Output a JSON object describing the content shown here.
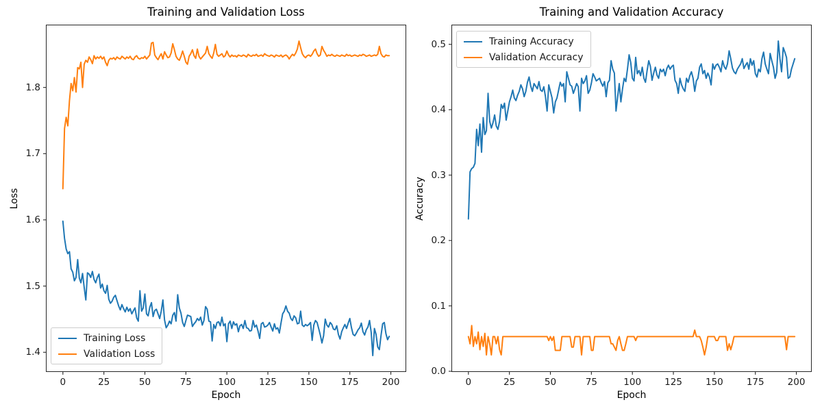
{
  "figure": {
    "background_color": "#ffffff",
    "spine_color": "#262626",
    "text_color": "#000000"
  },
  "chart_data": [
    {
      "type": "line",
      "title": "Training and Validation Loss",
      "xlabel": "Epoch",
      "ylabel": "Loss",
      "grid": false,
      "xlim": [
        -9.95,
        208.95
      ],
      "ylim": [
        1.3713,
        1.8938
      ],
      "xticks": [
        0,
        25,
        50,
        75,
        100,
        125,
        150,
        175,
        200
      ],
      "xtick_labels": [
        "0",
        "25",
        "50",
        "75",
        "100",
        "125",
        "150",
        "175",
        "200"
      ],
      "yticks": [
        1.4,
        1.5,
        1.6,
        1.7,
        1.8
      ],
      "ytick_labels": [
        "1.4",
        "1.5",
        "1.6",
        "1.7",
        "1.8"
      ],
      "legend_position": "lower-left",
      "x_start": 0,
      "x_step": 1,
      "series": [
        {
          "name": "Training Loss",
          "color": "#1f77b4",
          "values": [
            1.598,
            1.572,
            1.556,
            1.549,
            1.552,
            1.526,
            1.521,
            1.508,
            1.513,
            1.54,
            1.512,
            1.505,
            1.519,
            1.498,
            1.479,
            1.52,
            1.518,
            1.513,
            1.522,
            1.51,
            1.505,
            1.513,
            1.518,
            1.497,
            1.503,
            1.493,
            1.489,
            1.501,
            1.48,
            1.474,
            1.477,
            1.483,
            1.486,
            1.478,
            1.47,
            1.464,
            1.472,
            1.466,
            1.461,
            1.468,
            1.462,
            1.466,
            1.458,
            1.463,
            1.467,
            1.452,
            1.447,
            1.493,
            1.462,
            1.467,
            1.488,
            1.458,
            1.455,
            1.468,
            1.475,
            1.454,
            1.463,
            1.465,
            1.458,
            1.451,
            1.462,
            1.479,
            1.449,
            1.437,
            1.441,
            1.447,
            1.443,
            1.456,
            1.46,
            1.447,
            1.487,
            1.467,
            1.459,
            1.445,
            1.439,
            1.448,
            1.456,
            1.455,
            1.454,
            1.439,
            1.443,
            1.446,
            1.451,
            1.448,
            1.453,
            1.441,
            1.448,
            1.469,
            1.465,
            1.447,
            1.446,
            1.417,
            1.442,
            1.436,
            1.445,
            1.446,
            1.44,
            1.453,
            1.44,
            1.443,
            1.416,
            1.443,
            1.447,
            1.436,
            1.446,
            1.441,
            1.443,
            1.431,
            1.44,
            1.442,
            1.436,
            1.448,
            1.437,
            1.436,
            1.432,
            1.433,
            1.448,
            1.438,
            1.441,
            1.432,
            1.421,
            1.443,
            1.445,
            1.438,
            1.439,
            1.441,
            1.445,
            1.438,
            1.432,
            1.443,
            1.435,
            1.437,
            1.429,
            1.444,
            1.458,
            1.462,
            1.47,
            1.462,
            1.459,
            1.451,
            1.448,
            1.455,
            1.452,
            1.443,
            1.444,
            1.462,
            1.441,
            1.439,
            1.442,
            1.44,
            1.442,
            1.445,
            1.418,
            1.441,
            1.448,
            1.445,
            1.436,
            1.426,
            1.414,
            1.425,
            1.45,
            1.441,
            1.438,
            1.445,
            1.442,
            1.435,
            1.434,
            1.44,
            1.427,
            1.42,
            1.431,
            1.437,
            1.442,
            1.436,
            1.444,
            1.451,
            1.437,
            1.427,
            1.425,
            1.429,
            1.434,
            1.437,
            1.444,
            1.431,
            1.426,
            1.434,
            1.438,
            1.448,
            1.43,
            1.395,
            1.436,
            1.427,
            1.408,
            1.404,
            1.425,
            1.443,
            1.445,
            1.428,
            1.419,
            1.424
          ]
        },
        {
          "name": "Validation Loss",
          "color": "#ff7f0e",
          "values": [
            1.647,
            1.738,
            1.755,
            1.742,
            1.78,
            1.806,
            1.795,
            1.815,
            1.793,
            1.83,
            1.828,
            1.838,
            1.8,
            1.835,
            1.841,
            1.838,
            1.846,
            1.842,
            1.836,
            1.848,
            1.843,
            1.846,
            1.844,
            1.847,
            1.843,
            1.846,
            1.838,
            1.833,
            1.841,
            1.844,
            1.843,
            1.845,
            1.842,
            1.846,
            1.844,
            1.843,
            1.847,
            1.845,
            1.843,
            1.846,
            1.844,
            1.847,
            1.843,
            1.842,
            1.846,
            1.848,
            1.844,
            1.843,
            1.845,
            1.844,
            1.847,
            1.843,
            1.846,
            1.849,
            1.867,
            1.868,
            1.849,
            1.845,
            1.842,
            1.847,
            1.851,
            1.843,
            1.854,
            1.849,
            1.845,
            1.846,
            1.852,
            1.866,
            1.857,
            1.847,
            1.843,
            1.841,
            1.847,
            1.855,
            1.847,
            1.838,
            1.835,
            1.847,
            1.851,
            1.857,
            1.848,
            1.844,
            1.858,
            1.847,
            1.843,
            1.846,
            1.849,
            1.852,
            1.862,
            1.851,
            1.847,
            1.844,
            1.852,
            1.865,
            1.85,
            1.847,
            1.849,
            1.851,
            1.846,
            1.848,
            1.855,
            1.849,
            1.846,
            1.849,
            1.847,
            1.848,
            1.846,
            1.849,
            1.848,
            1.847,
            1.849,
            1.848,
            1.846,
            1.85,
            1.848,
            1.847,
            1.849,
            1.848,
            1.85,
            1.847,
            1.848,
            1.849,
            1.847,
            1.851,
            1.849,
            1.848,
            1.847,
            1.849,
            1.848,
            1.846,
            1.849,
            1.848,
            1.847,
            1.849,
            1.846,
            1.848,
            1.849,
            1.847,
            1.843,
            1.847,
            1.85,
            1.848,
            1.852,
            1.858,
            1.87,
            1.86,
            1.851,
            1.847,
            1.845,
            1.848,
            1.849,
            1.847,
            1.85,
            1.855,
            1.858,
            1.851,
            1.847,
            1.849,
            1.862,
            1.856,
            1.852,
            1.847,
            1.849,
            1.848,
            1.85,
            1.848,
            1.847,
            1.849,
            1.848,
            1.847,
            1.849,
            1.848,
            1.847,
            1.85,
            1.848,
            1.849,
            1.847,
            1.848,
            1.849,
            1.848,
            1.847,
            1.849,
            1.848,
            1.85,
            1.849,
            1.847,
            1.848,
            1.849,
            1.847,
            1.848,
            1.849,
            1.848,
            1.85,
            1.862,
            1.851,
            1.847,
            1.846,
            1.849,
            1.848,
            1.848
          ]
        }
      ]
    },
    {
      "type": "line",
      "title": "Training and Validation Accuracy",
      "xlabel": "Epoch",
      "ylabel": "Accuracy",
      "grid": false,
      "xlim": [
        -9.95,
        208.95
      ],
      "ylim": [
        0.0,
        0.529
      ],
      "xticks": [
        0,
        25,
        50,
        75,
        100,
        125,
        150,
        175,
        200
      ],
      "xtick_labels": [
        "0",
        "25",
        "50",
        "75",
        "100",
        "125",
        "150",
        "175",
        "200"
      ],
      "yticks": [
        0.0,
        0.1,
        0.2,
        0.3,
        0.4,
        0.5
      ],
      "ytick_labels": [
        "0.0",
        "0.1",
        "0.2",
        "0.3",
        "0.4",
        "0.5"
      ],
      "legend_position": "upper-left",
      "x_start": 0,
      "x_step": 1,
      "series": [
        {
          "name": "Training Accuracy",
          "color": "#1f77b4",
          "values": [
            0.233,
            0.305,
            0.31,
            0.312,
            0.318,
            0.37,
            0.345,
            0.378,
            0.335,
            0.388,
            0.362,
            0.368,
            0.425,
            0.382,
            0.372,
            0.38,
            0.392,
            0.375,
            0.37,
            0.382,
            0.408,
            0.402,
            0.41,
            0.384,
            0.398,
            0.412,
            0.42,
            0.43,
            0.418,
            0.414,
            0.422,
            0.428,
            0.438,
            0.432,
            0.42,
            0.428,
            0.442,
            0.45,
            0.436,
            0.428,
            0.44,
            0.436,
            0.432,
            0.443,
            0.43,
            0.428,
            0.435,
            0.42,
            0.398,
            0.438,
            0.428,
            0.418,
            0.395,
            0.412,
            0.418,
            0.43,
            0.442,
            0.436,
            0.44,
            0.412,
            0.458,
            0.448,
            0.438,
            0.436,
            0.425,
            0.432,
            0.44,
            0.435,
            0.398,
            0.448,
            0.44,
            0.444,
            0.452,
            0.425,
            0.43,
            0.441,
            0.455,
            0.45,
            0.444,
            0.446,
            0.448,
            0.441,
            0.436,
            0.443,
            0.42,
            0.441,
            0.445,
            0.475,
            0.462,
            0.456,
            0.398,
            0.42,
            0.44,
            0.412,
            0.432,
            0.448,
            0.443,
            0.462,
            0.484,
            0.472,
            0.448,
            0.444,
            0.48,
            0.455,
            0.46,
            0.452,
            0.465,
            0.448,
            0.442,
            0.46,
            0.475,
            0.466,
            0.445,
            0.456,
            0.465,
            0.453,
            0.448,
            0.462,
            0.458,
            0.462,
            0.452,
            0.463,
            0.468,
            0.462,
            0.466,
            0.468,
            0.445,
            0.44,
            0.425,
            0.448,
            0.438,
            0.432,
            0.428,
            0.448,
            0.442,
            0.452,
            0.458,
            0.448,
            0.428,
            0.444,
            0.448,
            0.465,
            0.47,
            0.455,
            0.46,
            0.448,
            0.456,
            0.45,
            0.438,
            0.47,
            0.462,
            0.468,
            0.47,
            0.465,
            0.458,
            0.475,
            0.466,
            0.462,
            0.47,
            0.49,
            0.478,
            0.464,
            0.458,
            0.455,
            0.462,
            0.466,
            0.47,
            0.478,
            0.463,
            0.468,
            0.472,
            0.462,
            0.478,
            0.468,
            0.475,
            0.455,
            0.45,
            0.462,
            0.458,
            0.478,
            0.488,
            0.47,
            0.462,
            0.455,
            0.486,
            0.475,
            0.465,
            0.448,
            0.457,
            0.505,
            0.478,
            0.458,
            0.495,
            0.488,
            0.48,
            0.448,
            0.45,
            0.462,
            0.47,
            0.478
          ]
        },
        {
          "name": "Validation Accuracy",
          "color": "#ff7f0e",
          "values": [
            0.053,
            0.042,
            0.07,
            0.038,
            0.053,
            0.042,
            0.06,
            0.033,
            0.053,
            0.038,
            0.058,
            0.025,
            0.053,
            0.042,
            0.025,
            0.053,
            0.053,
            0.042,
            0.053,
            0.033,
            0.025,
            0.053,
            0.053,
            0.053,
            0.053,
            0.053,
            0.053,
            0.053,
            0.053,
            0.053,
            0.053,
            0.053,
            0.053,
            0.053,
            0.053,
            0.053,
            0.053,
            0.053,
            0.053,
            0.053,
            0.053,
            0.053,
            0.053,
            0.053,
            0.053,
            0.053,
            0.053,
            0.053,
            0.053,
            0.047,
            0.053,
            0.047,
            0.053,
            0.032,
            0.032,
            0.032,
            0.032,
            0.053,
            0.053,
            0.053,
            0.053,
            0.053,
            0.053,
            0.037,
            0.037,
            0.053,
            0.053,
            0.053,
            0.053,
            0.025,
            0.053,
            0.053,
            0.053,
            0.053,
            0.053,
            0.032,
            0.032,
            0.053,
            0.053,
            0.053,
            0.053,
            0.053,
            0.053,
            0.053,
            0.053,
            0.053,
            0.053,
            0.042,
            0.042,
            0.037,
            0.032,
            0.047,
            0.053,
            0.042,
            0.032,
            0.032,
            0.042,
            0.053,
            0.053,
            0.053,
            0.053,
            0.053,
            0.047,
            0.053,
            0.053,
            0.053,
            0.053,
            0.053,
            0.053,
            0.053,
            0.053,
            0.053,
            0.053,
            0.053,
            0.053,
            0.053,
            0.053,
            0.053,
            0.053,
            0.053,
            0.053,
            0.053,
            0.053,
            0.053,
            0.053,
            0.053,
            0.053,
            0.053,
            0.053,
            0.053,
            0.053,
            0.053,
            0.053,
            0.053,
            0.053,
            0.053,
            0.053,
            0.053,
            0.063,
            0.053,
            0.053,
            0.053,
            0.047,
            0.037,
            0.025,
            0.037,
            0.053,
            0.053,
            0.053,
            0.053,
            0.053,
            0.047,
            0.047,
            0.053,
            0.053,
            0.053,
            0.053,
            0.053,
            0.032,
            0.042,
            0.033,
            0.042,
            0.053,
            0.053,
            0.053,
            0.053,
            0.053,
            0.053,
            0.053,
            0.053,
            0.053,
            0.053,
            0.053,
            0.053,
            0.053,
            0.053,
            0.053,
            0.053,
            0.053,
            0.053,
            0.053,
            0.053,
            0.053,
            0.053,
            0.053,
            0.053,
            0.053,
            0.053,
            0.053,
            0.053,
            0.053,
            0.053,
            0.053,
            0.053,
            0.033,
            0.053,
            0.053,
            0.053,
            0.053,
            0.053
          ]
        }
      ]
    }
  ]
}
